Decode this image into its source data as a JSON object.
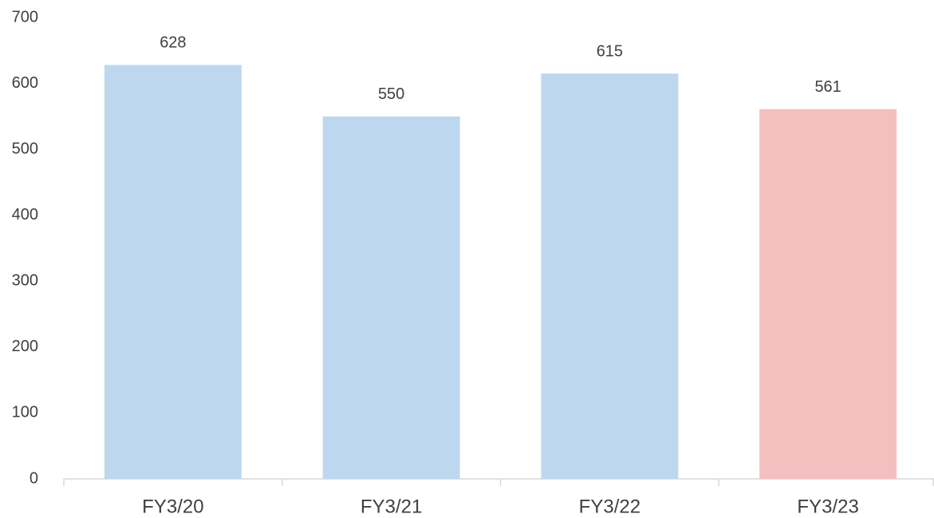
{
  "chart_data": {
    "type": "bar",
    "categories": [
      "FY3/20",
      "FY3/21",
      "FY3/22",
      "FY3/23"
    ],
    "values": [
      628,
      550,
      615,
      561
    ],
    "colors": [
      "#bdd7ee",
      "#bdd7ee",
      "#bdd7ee",
      "#f4c0bf"
    ],
    "ylim": [
      0,
      700
    ],
    "yticks": [
      0,
      100,
      200,
      300,
      400,
      500,
      600,
      700
    ],
    "grid": false
  }
}
